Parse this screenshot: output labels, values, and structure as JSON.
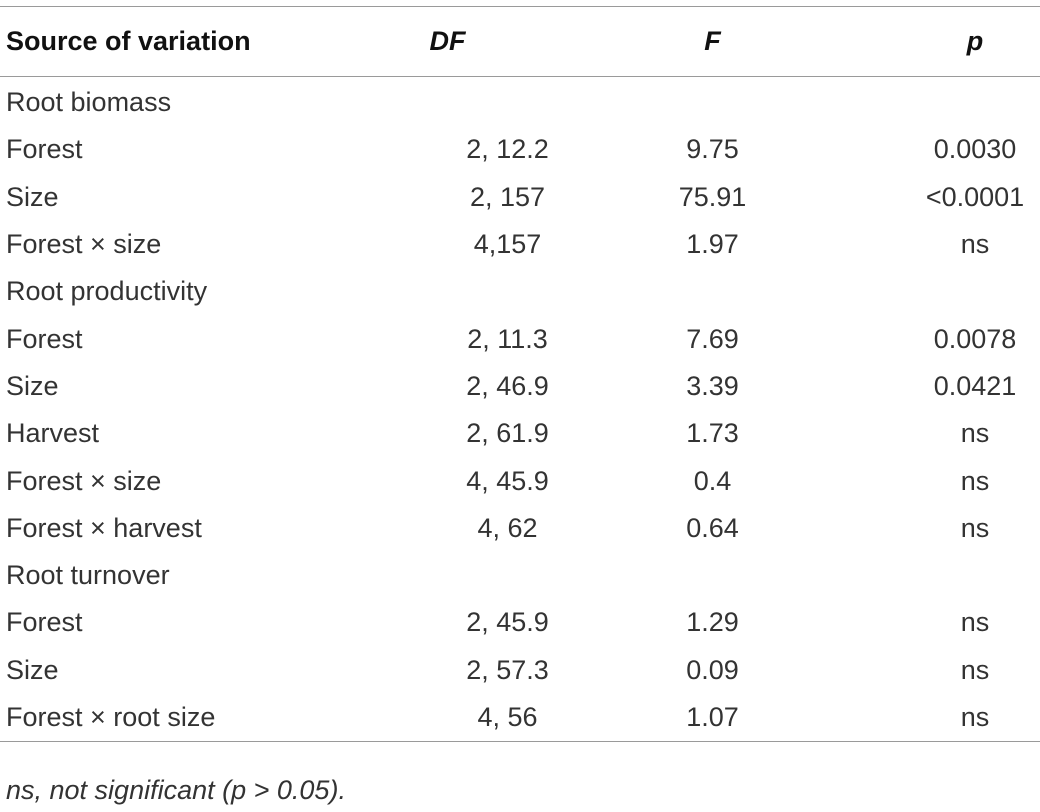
{
  "table": {
    "headers": {
      "source": "Source of variation",
      "df": "DF",
      "f": "F",
      "p": "p"
    },
    "rows": [
      {
        "source": "Root biomass",
        "df": "",
        "f": "",
        "p": ""
      },
      {
        "source": "Forest",
        "df": "2, 12.2",
        "f": "9.75",
        "p": "0.0030"
      },
      {
        "source": "Size",
        "df": "2, 157",
        "f": "75.91",
        "p": "<0.0001"
      },
      {
        "source": "Forest × size",
        "df": "4,157",
        "f": "1.97",
        "p": "ns"
      },
      {
        "source": "Root productivity",
        "df": "",
        "f": "",
        "p": ""
      },
      {
        "source": "Forest",
        "df": "2, 11.3",
        "f": "7.69",
        "p": "0.0078"
      },
      {
        "source": "Size",
        "df": "2, 46.9",
        "f": "3.39",
        "p": "0.0421"
      },
      {
        "source": "Harvest",
        "df": "2, 61.9",
        "f": "1.73",
        "p": "ns"
      },
      {
        "source": "Forest × size",
        "df": "4, 45.9",
        "f": "0.4",
        "p": "ns"
      },
      {
        "source": "Forest × harvest",
        "df": "4, 62",
        "f": "0.64",
        "p": "ns"
      },
      {
        "source": "Root turnover",
        "df": "",
        "f": "",
        "p": ""
      },
      {
        "source": "Forest",
        "df": "2, 45.9",
        "f": "1.29",
        "p": "ns"
      },
      {
        "source": "Size",
        "df": "2, 57.3",
        "f": "0.09",
        "p": "ns"
      },
      {
        "source": "Forest × root size",
        "df": "4, 56",
        "f": "1.07",
        "p": "ns"
      }
    ]
  },
  "footnote": "ns, not significant (p > 0.05)."
}
